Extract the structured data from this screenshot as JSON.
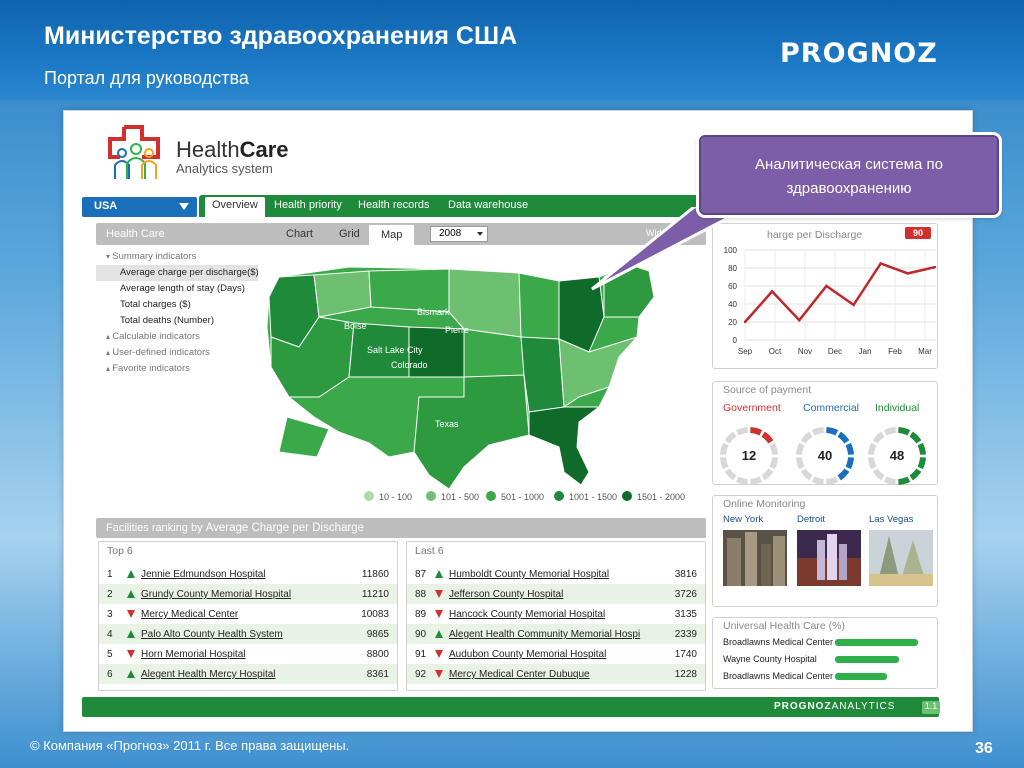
{
  "slide": {
    "title": "Министерство здравоохранения США",
    "subtitle": "Портал для руководства",
    "brand": "PROGNOZ",
    "footer": "© Компания «Прогноз» 2011 г. Все права защищены.",
    "page_number": "36"
  },
  "callout": {
    "line1": "Аналитическая система по",
    "line2": "здравоохранению"
  },
  "app": {
    "logo_name_light": "Health",
    "logo_name_bold": "Care",
    "logo_sub": "Analytics system",
    "country": "USA",
    "main_tabs": [
      "Overview",
      "Health priority",
      "Health records",
      "Data warehouse"
    ],
    "panel_label": "Health Care",
    "view_tabs": [
      "Chart",
      "Grid",
      "Map"
    ],
    "year": "2008",
    "wide_screen": "Wide screen",
    "indicators": {
      "summary": "Summary indicators",
      "items": [
        "Average charge per discharge($)",
        "Average length of stay (Days)",
        "Total charges ($)",
        "Total deaths (Number)"
      ],
      "calculable": "Calculable indicators",
      "user_defined": "User-defined indicators",
      "favorite": "Favorite indicators"
    },
    "map_labels": [
      "Bismark",
      "Boise",
      "Pierre",
      "Salt Lake City",
      "Colorado",
      "Texas"
    ],
    "legend": [
      {
        "label": "10 - 100",
        "color": "#a9dba6"
      },
      {
        "label": "101 - 500",
        "color": "#6cc06f"
      },
      {
        "label": "501 - 1000",
        "color": "#3ba84a"
      },
      {
        "label": "1001 - 1500",
        "color": "#1f8a3a"
      },
      {
        "label": "1501 - 2000",
        "color": "#0f6b2a"
      }
    ],
    "facilities_bar": {
      "prefix": "Facilities  ranking by",
      "metric": "Average Charge per Discharge"
    },
    "top6": {
      "title": "Top 6",
      "rows": [
        {
          "n": "1",
          "dir": "up",
          "name": "Jennie Edmundson Hospital",
          "value": "11860"
        },
        {
          "n": "2",
          "dir": "up",
          "name": "Grundy County Memorial Hospital",
          "value": "11210"
        },
        {
          "n": "3",
          "dir": "down",
          "name": "Mercy Medical Center",
          "value": "10083"
        },
        {
          "n": "4",
          "dir": "up",
          "name": "Palo Alto County Health System",
          "value": "9865"
        },
        {
          "n": "5",
          "dir": "down",
          "name": "Horn Memorial Hospital",
          "value": "8800"
        },
        {
          "n": "6",
          "dir": "up",
          "name": "Alegent Health Mercy Hospital",
          "value": "8361"
        }
      ]
    },
    "last6": {
      "title": "Last 6",
      "rows": [
        {
          "n": "87",
          "dir": "up",
          "name": "Humboldt County Memorial Hospital",
          "value": "3816"
        },
        {
          "n": "88",
          "dir": "down",
          "name": "Jefferson County Hospital",
          "value": "3726"
        },
        {
          "n": "89",
          "dir": "down",
          "name": "Hancock County Memorial Hospital",
          "value": "3135"
        },
        {
          "n": "90",
          "dir": "up",
          "name": "Alegent Health Community Memorial Hospi",
          "value": "2339"
        },
        {
          "n": "91",
          "dir": "down",
          "name": "Audubon County Memorial Hospital",
          "value": "1740"
        },
        {
          "n": "92",
          "dir": "down",
          "name": "Mercy Medical Center Dubuque",
          "value": "1228"
        }
      ]
    },
    "charge_chart": {
      "title": "harge per Discharge",
      "badge": "90",
      "months": [
        "Sep",
        "Oct",
        "Nov",
        "Dec",
        "Jan",
        "Feb",
        "Mar"
      ],
      "y_ticks": [
        "0",
        "20",
        "40",
        "60",
        "80",
        "100"
      ]
    },
    "payment": {
      "title": "Source of payment",
      "items": [
        {
          "label": "Government",
          "value": "12",
          "fraction": 0.12,
          "color": "#d22f2f"
        },
        {
          "label": "Commercial",
          "value": "40",
          "fraction": 0.4,
          "color": "#1a6fba"
        },
        {
          "label": "Individual",
          "value": "48",
          "fraction": 0.48,
          "color": "#1f8a3a"
        }
      ]
    },
    "monitoring": {
      "title": "Online  Monitoring",
      "cities": [
        "New York",
        "Detroit",
        "Las Vegas"
      ]
    },
    "uhc": {
      "title": "Universal Health Care (%)",
      "rows": [
        {
          "name": "Broadlawns Medical Center",
          "fraction": 0.92
        },
        {
          "name": "Wayne County Hospital",
          "fraction": 0.71
        },
        {
          "name": "Broadlawns Medical Center",
          "fraction": 0.58
        }
      ]
    },
    "bottom": {
      "brand_bold": "PROGNOZ",
      "brand_light": "ANALYTICS",
      "version": "1.1"
    }
  },
  "chart_data": {
    "type": "line",
    "title": "harge per Discharge",
    "categories": [
      "Sep",
      "Oct",
      "Nov",
      "Dec",
      "Jan",
      "Feb",
      "Mar"
    ],
    "series": [
      {
        "values": [
          20,
          54,
          22,
          60,
          39,
          85,
          74,
          81
        ]
      }
    ],
    "x": [
      "Sep",
      "",
      "Oct",
      "Nov",
      "Dec",
      "Jan",
      "Feb",
      "Mar"
    ],
    "ylim": [
      0,
      100
    ],
    "grid": true,
    "color": "#c0282e"
  }
}
